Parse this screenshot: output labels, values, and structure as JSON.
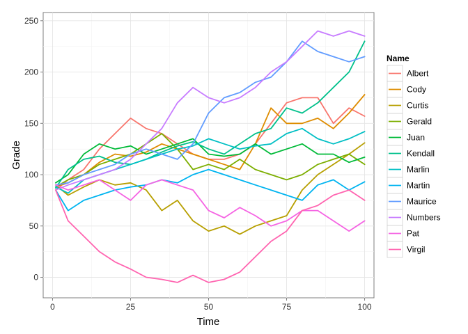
{
  "chart_data": {
    "type": "line",
    "xlabel": "Time",
    "ylabel": "Grade",
    "xlim": [
      -3,
      103
    ],
    "ylim": [
      -20,
      258
    ],
    "xticks": [
      0,
      25,
      50,
      75,
      100
    ],
    "yticks": [
      0,
      50,
      100,
      150,
      200,
      250
    ],
    "grid": true,
    "legend": {
      "title": "Name",
      "placement": "right"
    },
    "x": [
      1,
      5,
      10,
      15,
      20,
      25,
      30,
      35,
      40,
      45,
      50,
      55,
      60,
      65,
      70,
      75,
      80,
      85,
      90,
      95,
      100
    ],
    "series": [
      {
        "name": "Albert",
        "color": "#F8766D",
        "values": [
          85,
          95,
          105,
          125,
          140,
          155,
          145,
          140,
          130,
          120,
          115,
          115,
          120,
          130,
          150,
          170,
          175,
          175,
          150,
          165,
          157
        ]
      },
      {
        "name": "Cody",
        "color": "#DE8C00",
        "values": [
          88,
          92,
          100,
          112,
          120,
          118,
          122,
          130,
          125,
          120,
          115,
          110,
          105,
          130,
          165,
          150,
          150,
          155,
          145,
          160,
          178
        ]
      },
      {
        "name": "Curtis",
        "color": "#B79F00",
        "values": [
          90,
          80,
          88,
          95,
          90,
          92,
          85,
          65,
          75,
          55,
          45,
          50,
          42,
          50,
          55,
          60,
          85,
          100,
          110,
          120,
          131
        ]
      },
      {
        "name": "Gerald",
        "color": "#7CAE00",
        "values": [
          88,
          95,
          100,
          110,
          115,
          120,
          130,
          140,
          125,
          105,
          110,
          105,
          115,
          105,
          100,
          95,
          100,
          110,
          115,
          120,
          110
        ]
      },
      {
        "name": "Juan",
        "color": "#00BA38",
        "values": [
          92,
          100,
          120,
          130,
          125,
          128,
          120,
          125,
          130,
          135,
          120,
          118,
          120,
          130,
          120,
          125,
          130,
          120,
          120,
          112,
          117
        ]
      },
      {
        "name": "Kendall",
        "color": "#00C08B",
        "values": [
          87,
          105,
          115,
          118,
          112,
          110,
          115,
          122,
          128,
          132,
          125,
          120,
          130,
          140,
          145,
          165,
          160,
          170,
          185,
          200,
          230
        ]
      },
      {
        "name": "Marlin",
        "color": "#00BFC4",
        "values": [
          88,
          82,
          95,
          100,
          105,
          110,
          115,
          120,
          125,
          128,
          135,
          130,
          125,
          128,
          130,
          140,
          145,
          135,
          130,
          135,
          142
        ]
      },
      {
        "name": "Martin",
        "color": "#00B4F0",
        "values": [
          85,
          65,
          75,
          80,
          85,
          88,
          90,
          95,
          92,
          100,
          105,
          100,
          95,
          90,
          85,
          80,
          75,
          90,
          95,
          85,
          93
        ]
      },
      {
        "name": "Maurice",
        "color": "#619CFF",
        "values": [
          90,
          92,
          100,
          105,
          110,
          120,
          125,
          120,
          115,
          130,
          160,
          175,
          180,
          190,
          195,
          210,
          230,
          220,
          215,
          210,
          215
        ]
      },
      {
        "name": "Numbers",
        "color": "#C77CFF",
        "values": [
          85,
          90,
          95,
          100,
          105,
          115,
          130,
          145,
          170,
          185,
          175,
          170,
          175,
          185,
          200,
          210,
          225,
          240,
          235,
          240,
          235
        ]
      },
      {
        "name": "Pat",
        "color": "#F564E3",
        "values": [
          90,
          85,
          90,
          95,
          85,
          75,
          90,
          95,
          90,
          85,
          65,
          58,
          68,
          60,
          50,
          55,
          65,
          65,
          55,
          45,
          55
        ]
      },
      {
        "name": "Virgil",
        "color": "#FF64B0",
        "values": [
          85,
          55,
          40,
          25,
          15,
          8,
          0,
          -2,
          -5,
          2,
          -5,
          -2,
          5,
          20,
          35,
          45,
          65,
          70,
          80,
          85,
          75
        ]
      }
    ]
  }
}
